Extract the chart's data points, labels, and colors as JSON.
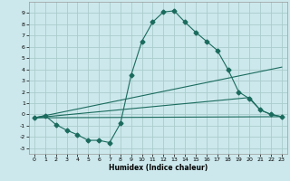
{
  "title": "",
  "xlabel": "Humidex (Indice chaleur)",
  "bg_color": "#cce8ec",
  "grid_color": "#aacccc",
  "line_color": "#1a6b5e",
  "markersize": 2.5,
  "xlim": [
    -0.5,
    23.5
  ],
  "ylim": [
    -3.5,
    10.0
  ],
  "xticks": [
    0,
    1,
    2,
    3,
    4,
    5,
    6,
    7,
    8,
    9,
    10,
    11,
    12,
    13,
    14,
    15,
    16,
    17,
    18,
    19,
    20,
    21,
    22,
    23
  ],
  "yticks": [
    -3,
    -2,
    -1,
    0,
    1,
    2,
    3,
    4,
    5,
    6,
    7,
    8,
    9
  ],
  "line1_x": [
    0,
    1,
    2,
    3,
    4,
    5,
    6,
    7,
    8,
    9,
    10,
    11,
    12,
    13,
    14,
    15,
    16,
    17,
    18,
    19,
    20,
    21,
    22,
    23
  ],
  "line1_y": [
    -0.3,
    -0.1,
    -0.9,
    -1.4,
    -1.8,
    -2.3,
    -2.3,
    -2.5,
    -0.8,
    3.5,
    6.5,
    8.2,
    9.1,
    9.2,
    8.2,
    7.3,
    6.5,
    5.7,
    4.0,
    2.0,
    1.4,
    0.4,
    0.0,
    -0.2
  ],
  "line2_x": [
    0,
    23
  ],
  "line2_y": [
    -0.3,
    -0.2
  ],
  "line3_x": [
    0,
    23
  ],
  "line3_y": [
    -0.3,
    4.2
  ],
  "line4_x": [
    0,
    20,
    21,
    22,
    23
  ],
  "line4_y": [
    -0.3,
    1.5,
    0.4,
    0.0,
    -0.2
  ]
}
